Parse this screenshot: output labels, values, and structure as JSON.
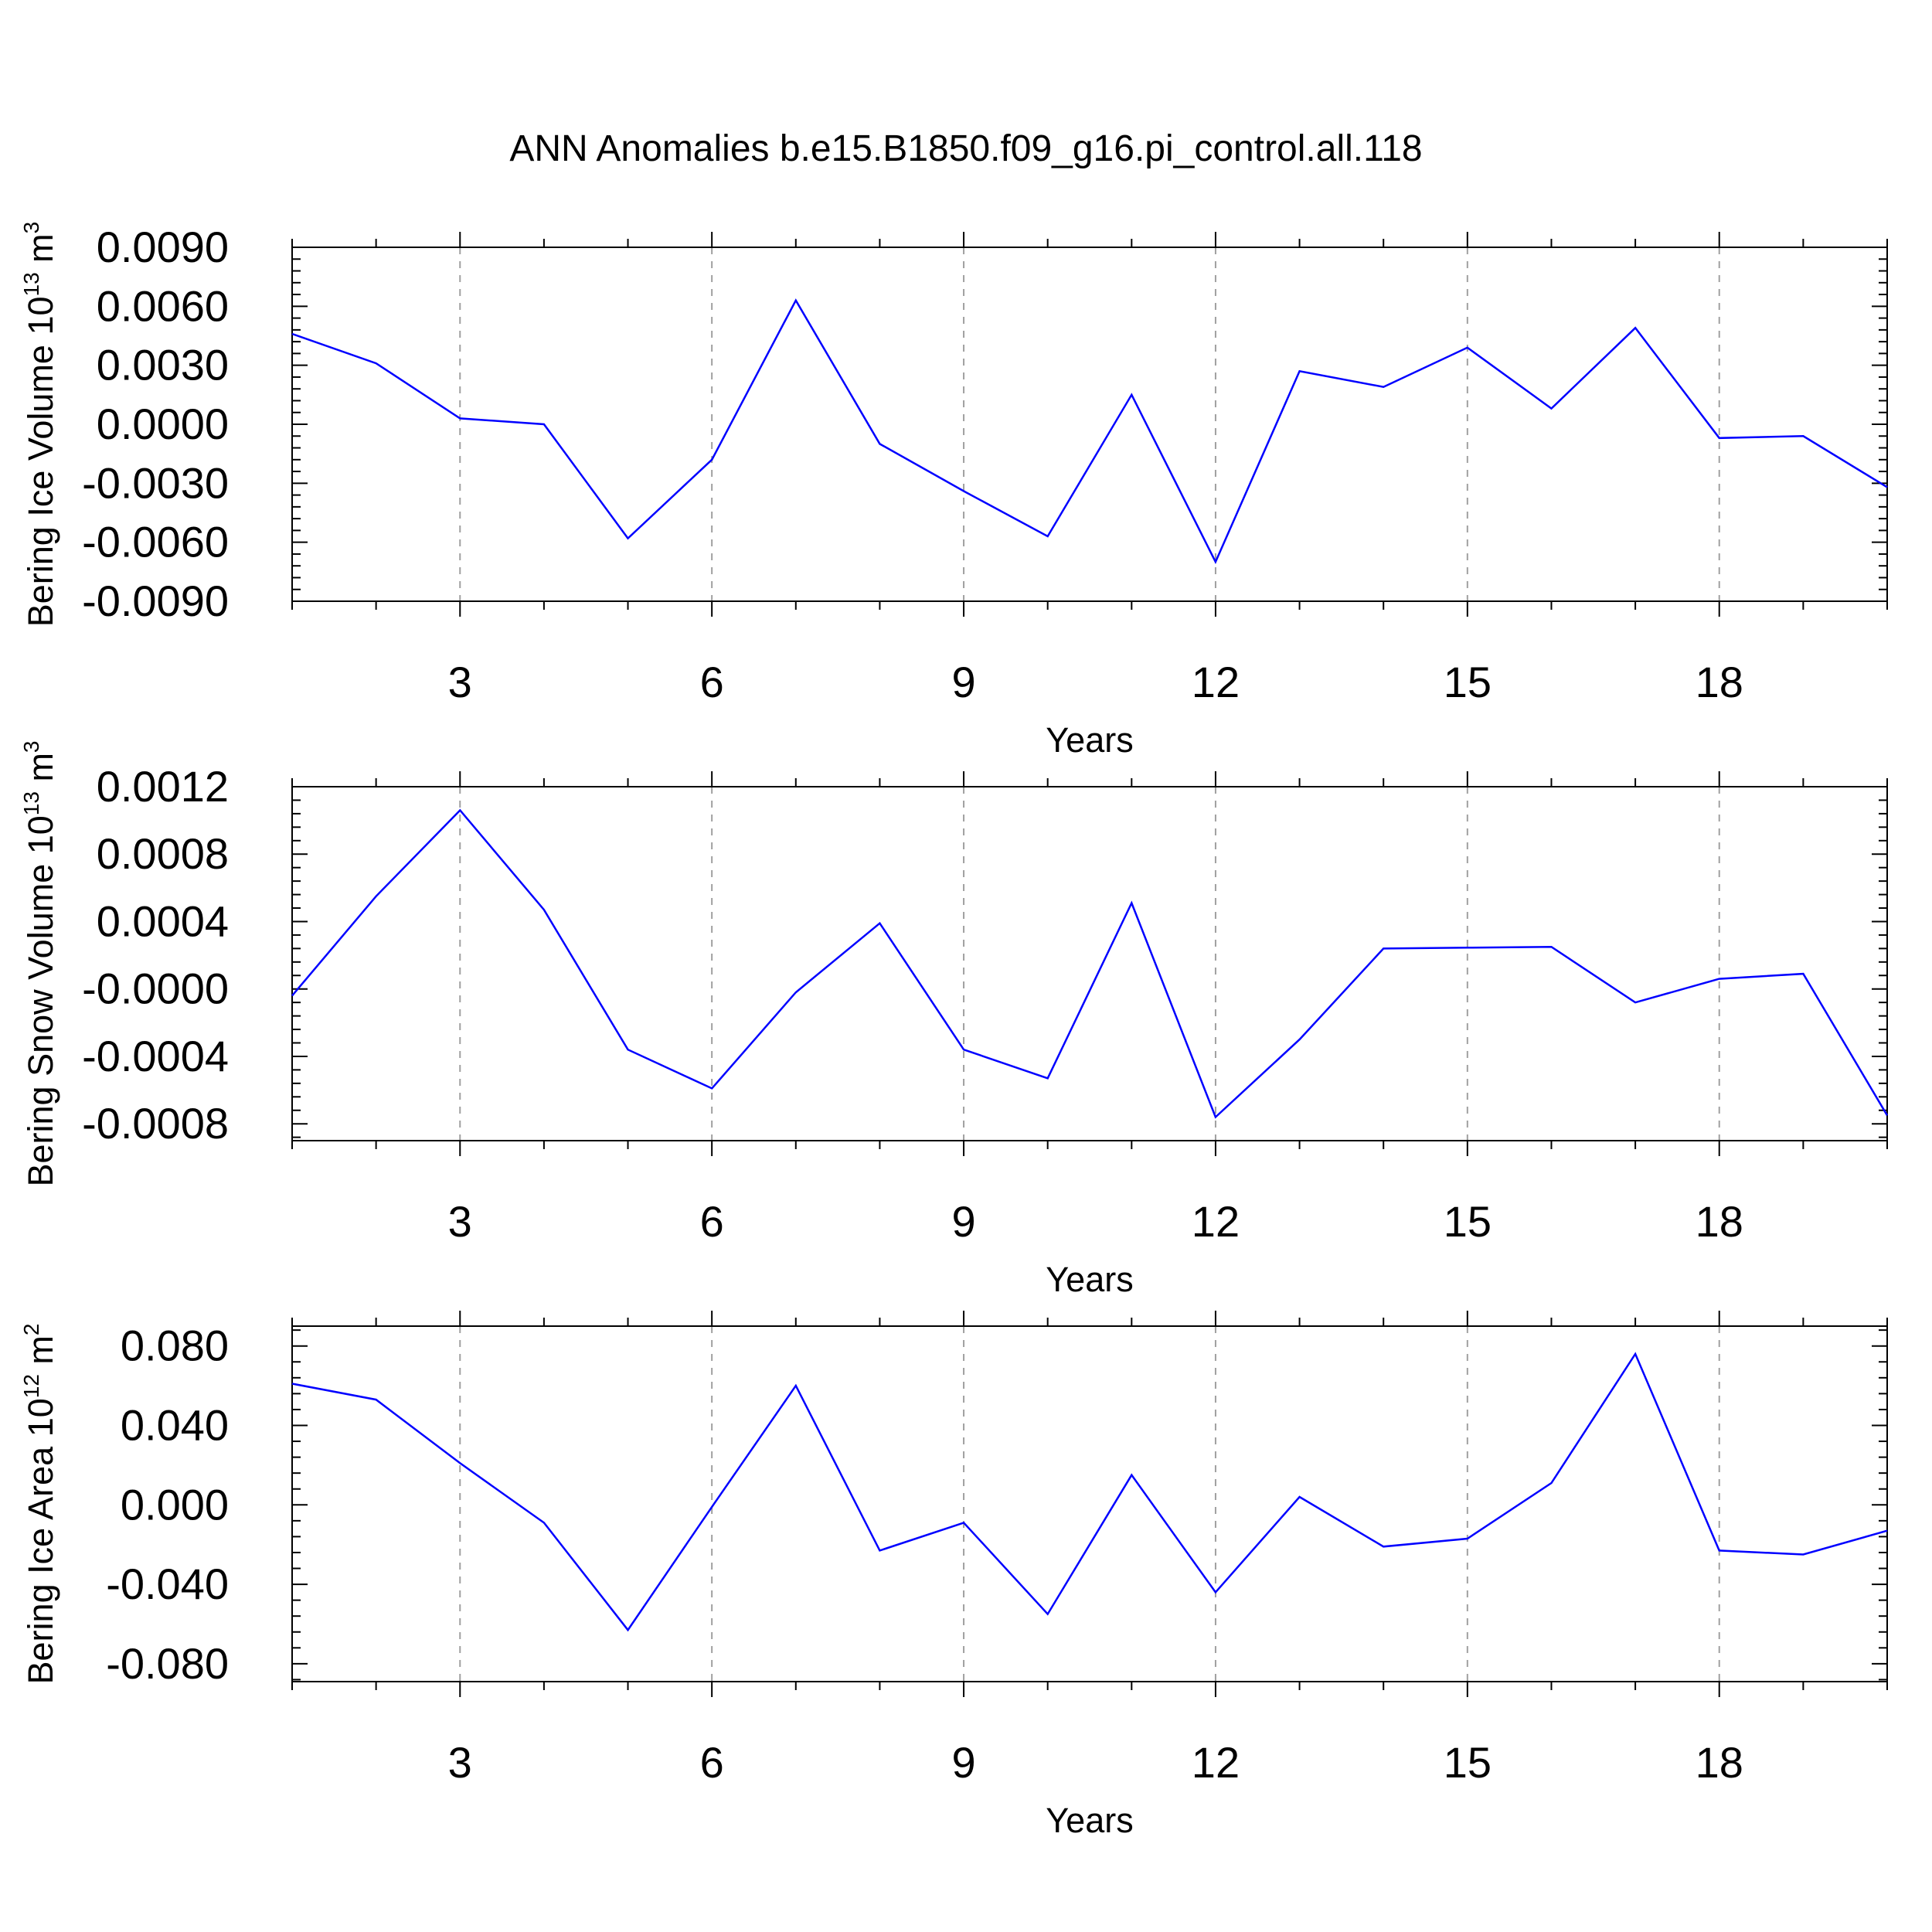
{
  "title": "ANN Anomalies b.e15.B1850.f09_g16.pi_control.all.118",
  "colors": {
    "line": "#0000ff",
    "axis": "#000000",
    "grid": "#a0a0a0"
  },
  "chart_data": [
    {
      "type": "line",
      "ylabel": {
        "text": "Bering Ice Volume 10",
        "sup": "13",
        "unit": " m",
        "unit_sup": "3"
      },
      "xlabel": "Years",
      "xlim": [
        1,
        20
      ],
      "xticks": [
        3,
        6,
        9,
        12,
        15,
        18
      ],
      "ylim": [
        -0.009,
        0.009
      ],
      "yticks": [
        "0.0090",
        "0.0060",
        "0.0030",
        "0.0000",
        "-0.0030",
        "-0.0060",
        "-0.0090"
      ],
      "ytick_values": [
        0.009,
        0.006,
        0.003,
        0,
        -0.003,
        -0.006,
        -0.009
      ],
      "x": [
        1,
        2,
        3,
        4,
        5,
        6,
        7,
        8,
        9,
        10,
        11,
        12,
        13,
        14,
        15,
        16,
        17,
        18,
        19,
        20
      ],
      "values": [
        0.0046,
        0.0031,
        0.0003,
        0.0,
        -0.0058,
        -0.0018,
        0.0063,
        -0.001,
        -0.0034,
        -0.0057,
        0.0015,
        -0.007,
        0.0027,
        0.0019,
        0.0039,
        0.0008,
        0.0049,
        -0.0007,
        -0.0006,
        -0.0032
      ]
    },
    {
      "type": "line",
      "ylabel": {
        "text": "Bering Snow Volume 10",
        "sup": "13",
        "unit": " m",
        "unit_sup": "3"
      },
      "xlabel": "Years",
      "xlim": [
        1,
        20
      ],
      "xticks": [
        3,
        6,
        9,
        12,
        15,
        18
      ],
      "ylim": [
        -0.0009,
        0.0012
      ],
      "yticks": [
        "0.0012",
        "0.0008",
        "0.0004",
        "-0.0000",
        "-0.0004",
        "-0.0008"
      ],
      "ytick_values": [
        0.0012,
        0.0008,
        0.0004,
        0,
        -0.0004,
        -0.0008
      ],
      "x": [
        1,
        2,
        3,
        4,
        5,
        6,
        7,
        8,
        9,
        10,
        11,
        12,
        13,
        14,
        15,
        16,
        17,
        18,
        19,
        20
      ],
      "values": [
        -4e-05,
        0.00055,
        0.00106,
        0.00047,
        -0.00036,
        -0.00059,
        -2e-05,
        0.00039,
        -0.00036,
        -0.00053,
        0.00051,
        -0.00076,
        -0.0003,
        0.00024,
        0.000245,
        0.00025,
        -8e-05,
        6e-05,
        9e-05,
        -0.00075
      ]
    },
    {
      "type": "line",
      "ylabel": {
        "text": "Bering Ice Area 10",
        "sup": "12",
        "unit": " m",
        "unit_sup": "2"
      },
      "xlabel": "Years",
      "xlim": [
        1,
        20
      ],
      "xticks": [
        3,
        6,
        9,
        12,
        15,
        18
      ],
      "ylim": [
        -0.089,
        0.09
      ],
      "yticks": [
        "0.080",
        "0.040",
        "0.000",
        "-0.040",
        "-0.080"
      ],
      "ytick_values": [
        0.08,
        0.04,
        0,
        -0.04,
        -0.08
      ],
      "x": [
        1,
        2,
        3,
        4,
        5,
        6,
        7,
        8,
        9,
        10,
        11,
        12,
        13,
        14,
        15,
        16,
        17,
        18,
        19,
        20
      ],
      "values": [
        0.061,
        0.053,
        0.021,
        -0.009,
        -0.063,
        -0.001,
        0.06,
        -0.023,
        -0.009,
        -0.055,
        0.015,
        -0.044,
        0.004,
        -0.021,
        -0.017,
        0.011,
        0.076,
        -0.023,
        -0.025,
        -0.013
      ]
    }
  ]
}
